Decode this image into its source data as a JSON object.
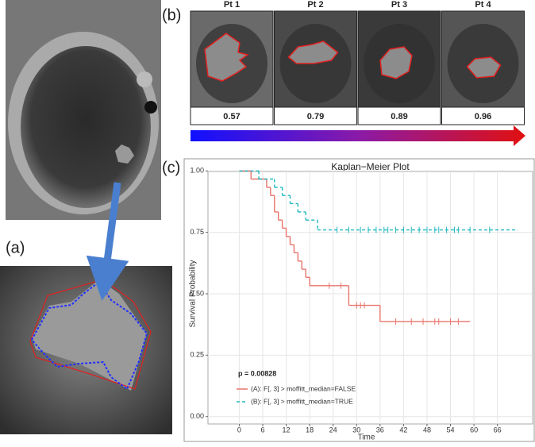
{
  "panel_labels": [
    "(a)",
    "(b)",
    "(c)"
  ],
  "patients": [
    {
      "label": "Pt 1",
      "score": 0.57
    },
    {
      "label": "Pt 2",
      "score": 0.79
    },
    {
      "label": "Pt 3",
      "score": 0.89
    },
    {
      "label": "Pt 4",
      "score": 0.96
    }
  ],
  "chart_data": {
    "type": "step",
    "title": "Kaplan−Meier Plot",
    "x_label": "Time",
    "y_label": "Survival Probability",
    "annotation": "p = 0.00828",
    "xlim": [
      -8,
      75
    ],
    "xticks": [
      0,
      6,
      12,
      18,
      24,
      30,
      36,
      42,
      48,
      54,
      60,
      66
    ],
    "ylim": [
      -0.03,
      1.03
    ],
    "yticks": [
      {
        "value": 0,
        "label": "0.00"
      },
      {
        "value": 0.25,
        "label": "0.25"
      },
      {
        "value": 0.5,
        "label": "0.50"
      },
      {
        "value": 0.75,
        "label": "0.75"
      },
      {
        "value": 1,
        "label": "1.00"
      }
    ],
    "grid": true,
    "series": [
      {
        "name": "(A): F[, 3] > moffitt_median=FALSE",
        "color": "#e8746c",
        "dash": false,
        "x": [
          0,
          3,
          7,
          8,
          9,
          10,
          11,
          12,
          13,
          14,
          15,
          16,
          17,
          18,
          28,
          36,
          59
        ],
        "values": [
          1,
          0.967,
          0.933,
          0.9,
          0.833,
          0.8,
          0.767,
          0.733,
          0.7,
          0.667,
          0.633,
          0.6,
          0.567,
          0.533,
          0.453,
          0.387,
          0.387
        ],
        "censored": {
          "x": [
            23,
            26,
            30,
            31,
            32,
            40,
            44,
            47,
            50,
            51,
            54,
            56
          ],
          "values": [
            0.533,
            0.533,
            0.453,
            0.453,
            0.453,
            0.387,
            0.387,
            0.387,
            0.387,
            0.387,
            0.387,
            0.387
          ]
        }
      },
      {
        "name": "(B): F[, 3] > moffitt_median=TRUE",
        "color": "#20b8c0",
        "dash": true,
        "x": [
          0,
          5,
          9,
          11,
          13,
          15,
          17,
          20,
          71
        ],
        "values": [
          1,
          0.967,
          0.933,
          0.9,
          0.867,
          0.833,
          0.8,
          0.76,
          0.76
        ],
        "censored": {
          "x": [
            25,
            28,
            31,
            33,
            35,
            37,
            38,
            40,
            42,
            44,
            46,
            48,
            50,
            51,
            53,
            55,
            56,
            59,
            64
          ],
          "values": [
            0.76,
            0.76,
            0.76,
            0.76,
            0.76,
            0.76,
            0.76,
            0.76,
            0.76,
            0.76,
            0.76,
            0.76,
            0.76,
            0.76,
            0.76,
            0.76,
            0.76,
            0.76,
            0.76
          ]
        }
      }
    ]
  }
}
